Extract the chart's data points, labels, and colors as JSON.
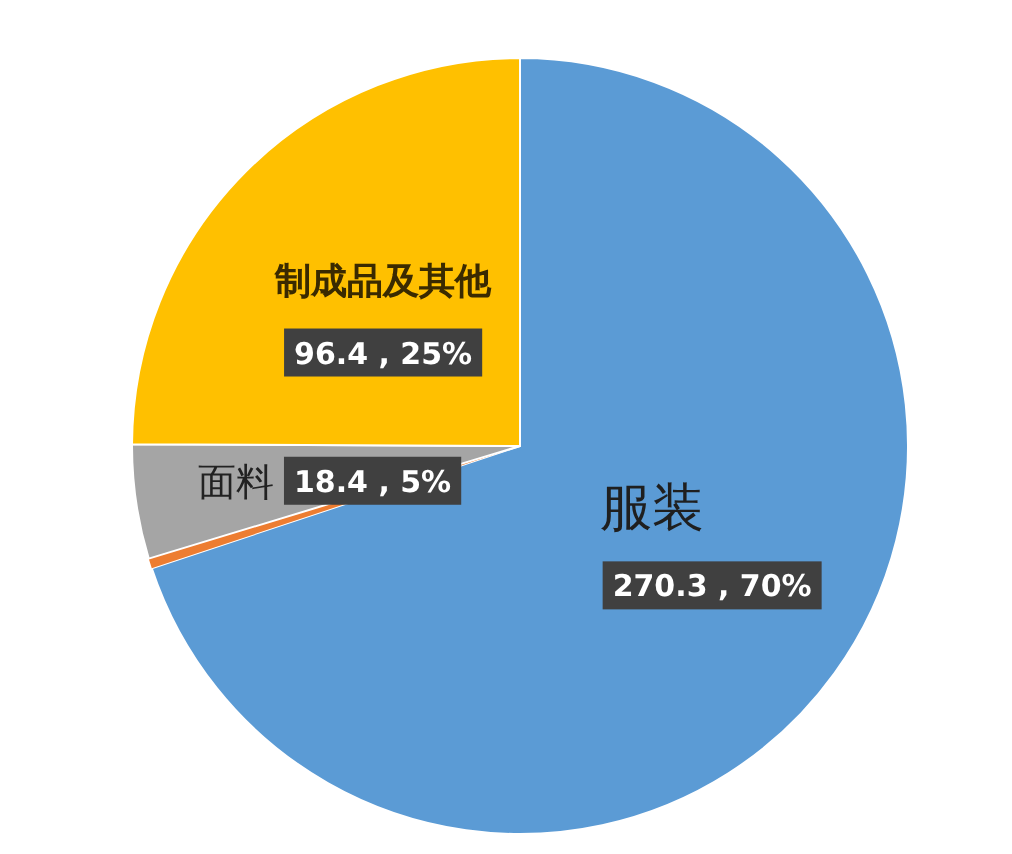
{
  "chart_data": {
    "type": "pie",
    "categories": [
      "服装",
      null,
      "面料",
      "制成品及其他"
    ],
    "values": [
      270.3,
      1.6,
      18.4,
      96.4
    ],
    "colors": [
      "#5b9bd5",
      "#ed7d31",
      "#a5a5a5",
      "#ffc000"
    ],
    "value_labels": [
      "270.3 , 70%",
      null,
      "18.4 , 5%",
      "96.4 , 25%"
    ]
  }
}
